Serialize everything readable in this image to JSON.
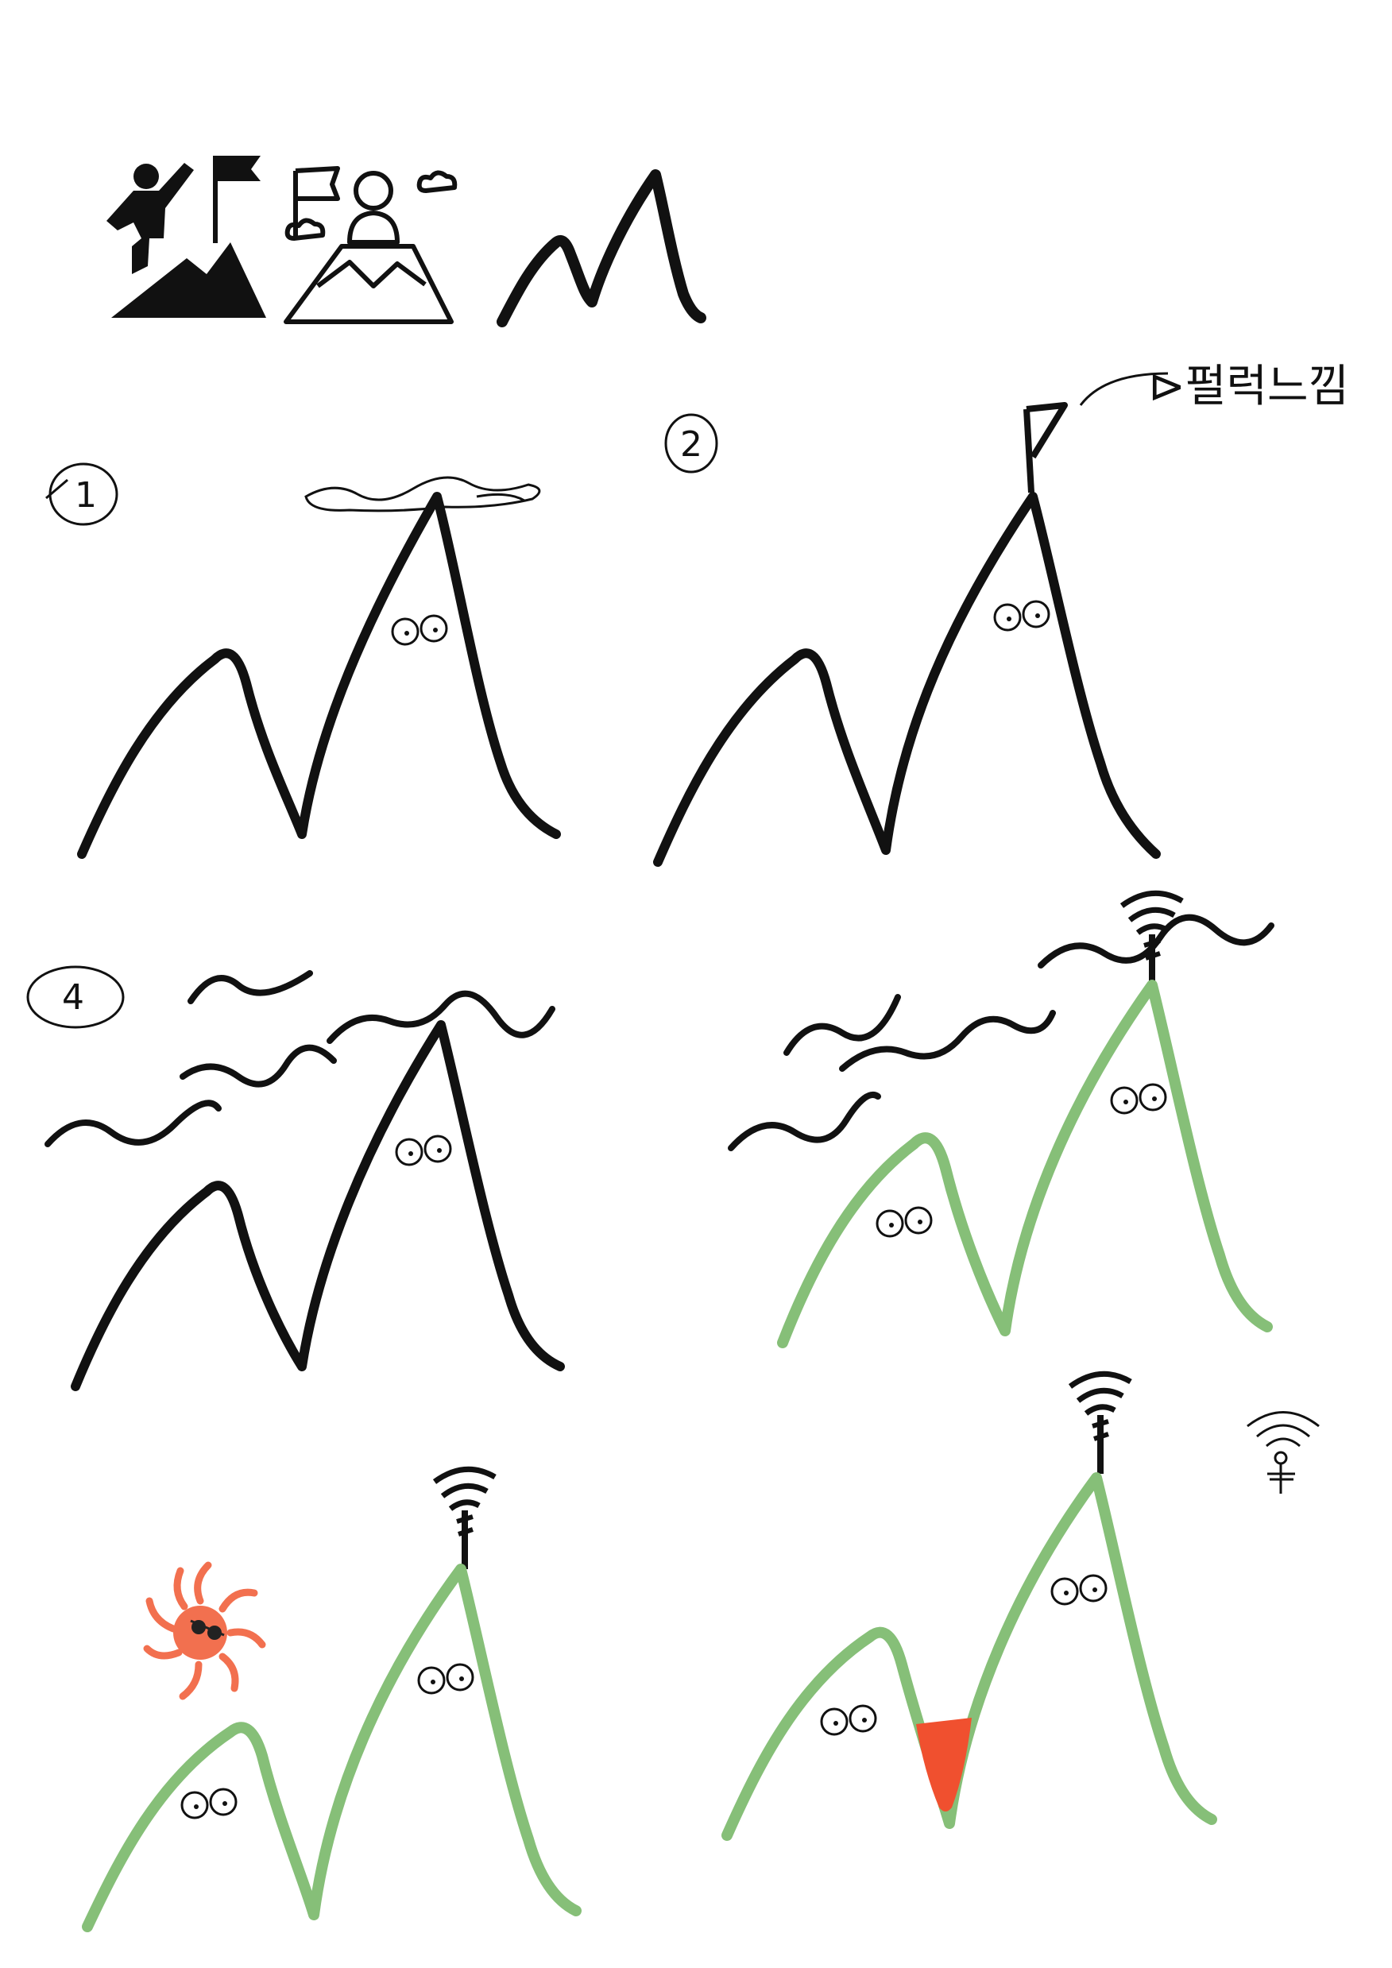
{
  "canvas": {
    "background": "#ffffff"
  },
  "colors": {
    "ink": "#111111",
    "green": "#86bf78",
    "sun": "#f2704f",
    "cone": "#f0502f"
  },
  "header_icons": [
    "climber-summit-icon",
    "person-flag-mountain-icon",
    "mountain-outline-icon"
  ],
  "sketches": [
    {
      "number": "1",
      "color": "ink",
      "decor": [
        "cloud-icon",
        "eyes-icon"
      ]
    },
    {
      "number": "2",
      "color": "ink",
      "decor": [
        "flag-icon",
        "eyes-icon"
      ],
      "note": "⊳펄럭느낌"
    },
    {
      "number": "4",
      "color": "ink",
      "decor": [
        "wind-lines-icon",
        "eyes-icon"
      ]
    },
    {
      "number": "",
      "color": "green",
      "decor": [
        "antenna-icon",
        "wind-lines-icon",
        "eyes-icon"
      ]
    },
    {
      "number": "",
      "color": "green",
      "decor": [
        "sun-with-sunglasses-icon",
        "antenna-icon",
        "eyes-icon"
      ]
    },
    {
      "number": "",
      "color": "green",
      "decor": [
        "antenna-icon",
        "traffic-cone-icon",
        "eyes-icon",
        "signal-symbol-icon"
      ]
    }
  ]
}
